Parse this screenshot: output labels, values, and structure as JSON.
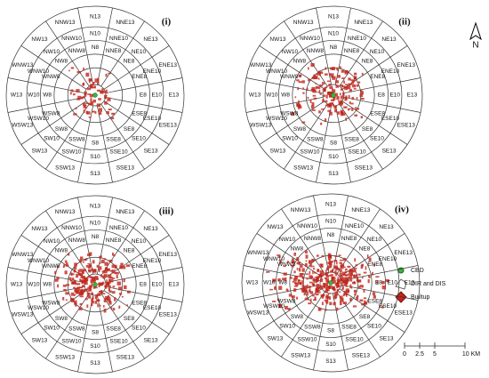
{
  "north": "N",
  "panels": [
    {
      "label": "(i)",
      "zones": [
        [
          "N13",
          "NNE13",
          "NE13",
          "ENE13",
          "E13",
          "ESE13",
          "SE13",
          "SSE13",
          "S13",
          "SSW13",
          "SW13",
          "WSW13",
          "W13",
          "WNW13",
          "NW13",
          "NNW13"
        ],
        [
          "N10",
          "NNE10",
          "NE10",
          "ENE10",
          "E10",
          "ESE10",
          "SE10",
          "SSE10",
          "S10",
          "SSW10",
          "SW10",
          "WSW10",
          "W10",
          "WNW10",
          "NW10",
          "NNW10"
        ],
        [
          "N8",
          "NNE8",
          "NE8",
          "ENE8",
          "E8",
          "ESE8",
          "SE8",
          "SSE8",
          "S8",
          "SSW8",
          "SW8",
          "WSW8",
          "W8",
          "WNW8",
          "NW8",
          "NNW8"
        ]
      ]
    },
    {
      "label": "(ii)",
      "zones": [
        [
          "N13",
          "NNE13",
          "NE13",
          "ENE13",
          "E13",
          "ESE13",
          "SE13",
          "SSE13",
          "S13",
          "SSW13",
          "SW13",
          "WSW13",
          "W13",
          "WNW13",
          "NW13",
          "NNW13"
        ],
        [
          "N10",
          "NNE10",
          "NE10",
          "ENE10",
          "E10",
          "ESE10",
          "SE10",
          "SSE10",
          "S10",
          "SSW10",
          "SW10",
          "WSW10",
          "W10",
          "WNW10",
          "NW10",
          "NNW10"
        ],
        [
          "N8",
          "NNE8",
          "NE8",
          "ENE8",
          "E8",
          "ESE8",
          "SE8",
          "SSE8",
          "S8",
          "SSW8",
          "SW8",
          "WSW8",
          "W8",
          "WNW8",
          "NW8",
          "NNW8"
        ]
      ]
    },
    {
      "label": "(iii)",
      "zones": [
        [
          "N13",
          "NNE13",
          "NE13",
          "ENE13",
          "E13",
          "ESE13",
          "SE13",
          "SSE13",
          "S13",
          "SSW13",
          "SW13",
          "WSW13",
          "W13",
          "WNW13",
          "NW13",
          "NNW13"
        ],
        [
          "N10",
          "NNE10",
          "NE10",
          "ENE10",
          "E10",
          "ESE10",
          "SE10",
          "SSE10",
          "S10",
          "SSW10",
          "SW10",
          "WSW10",
          "W10",
          "WNW10",
          "NW10",
          "NNW10"
        ],
        [
          "N8",
          "NNE8",
          "NE8",
          "ENE8",
          "E8",
          "ESE8",
          "SE8",
          "SSE8",
          "S8",
          "SSW8",
          "SW8",
          "WSW8",
          "W8",
          "WNW8",
          "NW8",
          "NNW8"
        ]
      ]
    },
    {
      "label": "(iv)",
      "zones": [
        [
          "N13",
          "NNE13",
          "NE13",
          "ENE13",
          "E13",
          "ESE13",
          "SE13",
          "SSE13",
          "S13",
          "SSW13",
          "SW13",
          "WSW13",
          "W13",
          "WNW13",
          "NW13",
          "NNW13"
        ],
        [
          "N10",
          "NNE10",
          "NE10",
          "ENE10",
          "E10",
          "ESE10",
          "SE10",
          "SSE10",
          "S10",
          "SSW10",
          "SW10",
          "WSW10",
          "W10",
          "WNW10",
          "NW10",
          "NNW10"
        ],
        [
          "N8",
          "NNE8",
          "NE8",
          "ENE8",
          "E8",
          "ESE8",
          "SE8",
          "SSE8",
          "S8",
          "SSW8",
          "SW8",
          "WSW8",
          "W8",
          "WNW8",
          "NW8",
          "NNW8"
        ]
      ]
    }
  ],
  "legend": [
    "CBD",
    "DIR and DIS",
    "Builtup"
  ],
  "scale": {
    "ticks": [
      "0",
      "2.5",
      "5",
      "10 KM"
    ]
  }
}
